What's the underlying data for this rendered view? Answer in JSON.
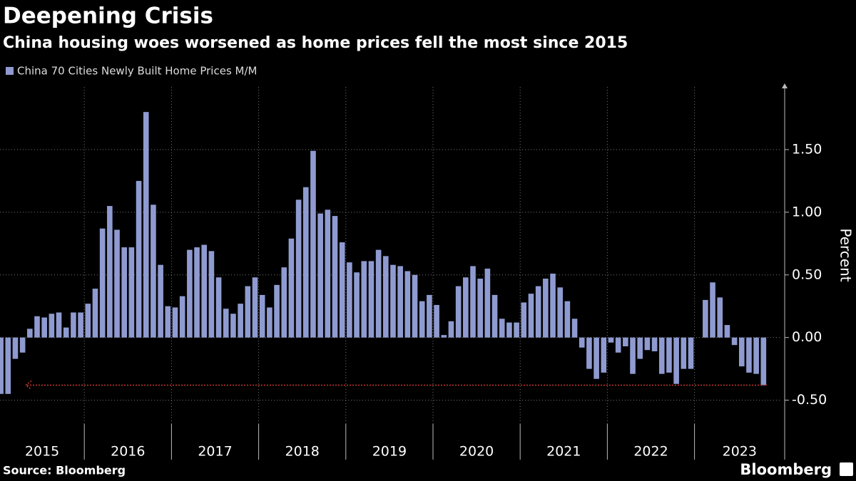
{
  "chart_data": {
    "type": "bar",
    "title": "Deepening Crisis",
    "subtitle": "China housing woes worsened as home prices fell the most since 2015",
    "y_label": "Percent",
    "source": "Source: Bloomberg",
    "brand": "Bloomberg",
    "series": [
      {
        "name": "China 70 Cities Newly Built Home Prices M/M",
        "color": "#8f9bd0",
        "values": [
          -0.45,
          -0.45,
          -0.17,
          -0.12,
          0.07,
          0.17,
          0.16,
          0.19,
          0.2,
          0.08,
          0.2,
          0.2,
          0.27,
          0.39,
          0.87,
          1.05,
          0.86,
          0.72,
          0.72,
          1.25,
          1.8,
          1.06,
          0.58,
          0.25,
          0.24,
          0.33,
          0.7,
          0.72,
          0.74,
          0.69,
          0.48,
          0.23,
          0.19,
          0.27,
          0.41,
          0.48,
          0.34,
          0.24,
          0.42,
          0.56,
          0.79,
          1.1,
          1.2,
          1.49,
          0.99,
          1.02,
          0.97,
          0.76,
          0.6,
          0.52,
          0.61,
          0.61,
          0.7,
          0.65,
          0.58,
          0.57,
          0.53,
          0.5,
          0.29,
          0.34,
          0.26,
          0.02,
          0.13,
          0.41,
          0.48,
          0.57,
          0.47,
          0.55,
          0.34,
          0.15,
          0.12,
          0.12,
          0.28,
          0.35,
          0.41,
          0.47,
          0.51,
          0.4,
          0.29,
          0.15,
          -0.08,
          -0.25,
          -0.33,
          -0.28,
          -0.04,
          -0.12,
          -0.07,
          -0.29,
          -0.17,
          -0.1,
          -0.11,
          -0.29,
          -0.28,
          -0.37,
          -0.25,
          -0.25,
          0.0,
          0.3,
          0.44,
          0.32,
          0.1,
          -0.06,
          -0.23,
          -0.28,
          -0.29,
          -0.38
        ]
      }
    ],
    "categories": [
      "2015",
      null,
      null,
      null,
      null,
      null,
      null,
      null,
      null,
      null,
      null,
      null,
      "2016",
      null,
      null,
      null,
      null,
      null,
      null,
      null,
      null,
      null,
      null,
      null,
      "2017",
      null,
      null,
      null,
      null,
      null,
      null,
      null,
      null,
      null,
      null,
      null,
      "2018",
      null,
      null,
      null,
      null,
      null,
      null,
      null,
      null,
      null,
      null,
      null,
      "2019",
      null,
      null,
      null,
      null,
      null,
      null,
      null,
      null,
      null,
      null,
      null,
      "2020",
      null,
      null,
      null,
      null,
      null,
      null,
      null,
      null,
      null,
      null,
      null,
      "2021",
      null,
      null,
      null,
      null,
      null,
      null,
      null,
      null,
      null,
      null,
      null,
      "2022",
      null,
      null,
      null,
      null,
      null,
      null,
      null,
      null,
      null,
      null,
      null,
      "2023",
      null,
      null,
      null,
      null,
      null,
      null,
      null,
      null,
      null
    ],
    "ylim": [
      -0.69,
      2.0
    ],
    "yticks": [
      {
        "value": -0.5,
        "label": "-0.50"
      },
      {
        "value": 0,
        "label": "0.00"
      },
      {
        "value": 0.5,
        "label": "0.50"
      },
      {
        "value": 1,
        "label": "1.00"
      },
      {
        "value": 1.5,
        "label": "1.50"
      }
    ],
    "reference_line": {
      "value": -0.38,
      "color": "#c8392e"
    },
    "grid": true
  }
}
